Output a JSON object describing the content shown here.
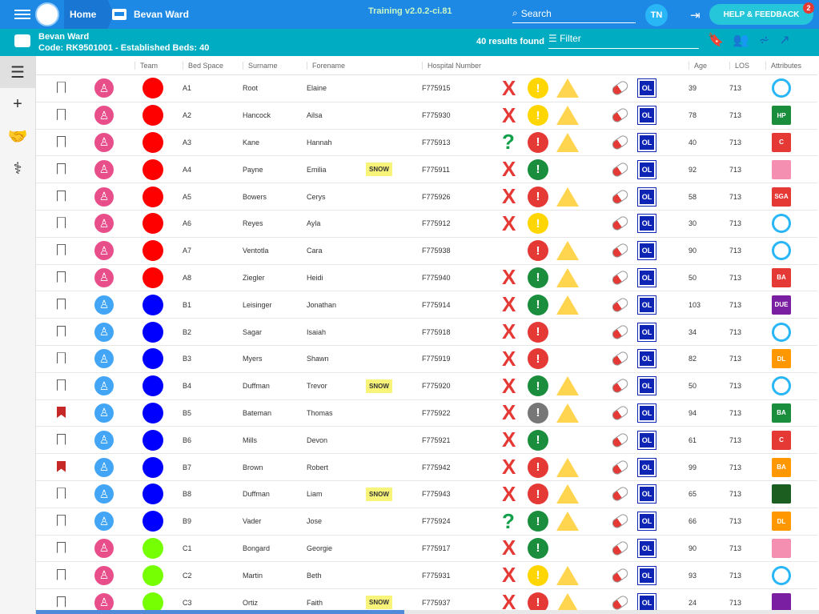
{
  "topbar": {
    "home": "Home",
    "ward": "Bevan Ward",
    "version": "Training v2.0.2-ci.81",
    "search_label": "Search",
    "user": "TN",
    "help": "HELP & FEEDBACK",
    "notifications": "2"
  },
  "subbar": {
    "ward_name": "Bevan Ward",
    "ward_code": "Code: RK9501001 - Established Beds: 40",
    "results": "40 results found",
    "filter": "Filter"
  },
  "columns": [
    "Team",
    "Bed Space",
    "Surname",
    "Forename",
    "Hospital Number",
    "Age",
    "LOS",
    "Attributes"
  ],
  "rows": [
    {
      "bed": "A1",
      "surname": "Root",
      "forename": "Elaine",
      "hosp": "F775915",
      "age": "39",
      "los": "713",
      "sex": "f",
      "team": "#ff0000",
      "snow": "",
      "bm": false,
      "mark": "#ffd600",
      "warn": true,
      "x": "X",
      "attr": "#29b6f6"
    },
    {
      "bed": "A2",
      "surname": "Hancock",
      "forename": "Ailsa",
      "hosp": "F775930",
      "age": "78",
      "los": "713",
      "sex": "f",
      "team": "#ff0000",
      "snow": "",
      "bm": false,
      "mark": "#ffd600",
      "warn": true,
      "x": "X",
      "attr": "#1b8e3d",
      "attr_text": "HP"
    },
    {
      "bed": "A3",
      "surname": "Kane",
      "forename": "Hannah",
      "hosp": "F775913",
      "age": "40",
      "los": "713",
      "sex": "f",
      "team": "#ff0000",
      "snow": "",
      "bm": false,
      "mark": "#e53935",
      "warn": true,
      "x": "?",
      "attr": "#e53935",
      "attr_text": "C"
    },
    {
      "bed": "A4",
      "surname": "Payne",
      "forename": "Emilia",
      "hosp": "F775911",
      "age": "92",
      "los": "713",
      "sex": "f",
      "team": "#ff0000",
      "snow": "SNOW",
      "bm": false,
      "mark": "#1b8e3d",
      "warn": false,
      "x": "X",
      "attr": "#f48fb1"
    },
    {
      "bed": "A5",
      "surname": "Bowers",
      "forename": "Cerys",
      "hosp": "F775926",
      "age": "58",
      "los": "713",
      "sex": "f",
      "team": "#ff0000",
      "snow": "",
      "bm": false,
      "mark": "#e53935",
      "warn": true,
      "x": "X",
      "attr": "#e53935",
      "attr_text": "SGA"
    },
    {
      "bed": "A6",
      "surname": "Reyes",
      "forename": "Ayla",
      "hosp": "F775912",
      "age": "30",
      "los": "713",
      "sex": "f",
      "team": "#ff0000",
      "snow": "",
      "bm": false,
      "mark": "#ffd600",
      "warn": false,
      "x": "X",
      "attr": "#29b6f6"
    },
    {
      "bed": "A7",
      "surname": "Ventotla",
      "forename": "Cara",
      "hosp": "F775938",
      "age": "90",
      "los": "713",
      "sex": "f",
      "team": "#ff0000",
      "snow": "",
      "bm": false,
      "mark": "#e53935",
      "warn": true,
      "x": "",
      "attr": "#29b6f6"
    },
    {
      "bed": "A8",
      "surname": "Ziegler",
      "forename": "Heidi",
      "hosp": "F775940",
      "age": "50",
      "los": "713",
      "sex": "f",
      "team": "#ff0000",
      "snow": "",
      "bm": false,
      "mark": "#1b8e3d",
      "warn": true,
      "x": "X",
      "attr": "#e53935",
      "attr_text": "BA"
    },
    {
      "bed": "B1",
      "surname": "Leisinger",
      "forename": "Jonathan",
      "hosp": "F775914",
      "age": "103",
      "los": "713",
      "sex": "m",
      "team": "#0000ff",
      "snow": "",
      "bm": false,
      "mark": "#1b8e3d",
      "warn": true,
      "x": "X",
      "attr": "#7b1fa2",
      "attr_text": "DUE"
    },
    {
      "bed": "B2",
      "surname": "Sagar",
      "forename": "Isaiah",
      "hosp": "F775918",
      "age": "34",
      "los": "713",
      "sex": "m",
      "team": "#0000ff",
      "snow": "",
      "bm": false,
      "mark": "#e53935",
      "warn": false,
      "x": "X",
      "attr": "#ffffff"
    },
    {
      "bed": "B3",
      "surname": "Myers",
      "forename": "Shawn",
      "hosp": "F775919",
      "age": "82",
      "los": "713",
      "sex": "m",
      "team": "#0000ff",
      "snow": "",
      "bm": false,
      "mark": "#e53935",
      "warn": false,
      "x": "X",
      "attr": "#ff9800",
      "attr_text": "DL"
    },
    {
      "bed": "B4",
      "surname": "Duffman",
      "forename": "Trevor",
      "hosp": "F775920",
      "age": "50",
      "los": "713",
      "sex": "m",
      "team": "#0000ff",
      "snow": "SNOW",
      "bm": false,
      "mark": "#1b8e3d",
      "warn": true,
      "x": "X",
      "attr": "#29b6f6"
    },
    {
      "bed": "B5",
      "surname": "Bateman",
      "forename": "Thomas",
      "hosp": "F775922",
      "age": "94",
      "los": "713",
      "sex": "m",
      "team": "#0000ff",
      "snow": "",
      "bm": true,
      "mark": "#777777",
      "warn": true,
      "x": "X",
      "attr": "#1b8e3d",
      "attr_text": "BA"
    },
    {
      "bed": "B6",
      "surname": "Mills",
      "forename": "Devon",
      "hosp": "F775921",
      "age": "61",
      "los": "713",
      "sex": "m",
      "team": "#0000ff",
      "snow": "",
      "bm": false,
      "mark": "#1b8e3d",
      "warn": false,
      "x": "X",
      "attr": "#e53935",
      "attr_text": "C"
    },
    {
      "bed": "B7",
      "surname": "Brown",
      "forename": "Robert",
      "hosp": "F775942",
      "age": "99",
      "los": "713",
      "sex": "m",
      "team": "#0000ff",
      "snow": "",
      "bm": true,
      "mark": "#e53935",
      "warn": true,
      "x": "X",
      "attr": "#ff9800",
      "attr_text": "BA"
    },
    {
      "bed": "B8",
      "surname": "Duffman",
      "forename": "Liam",
      "hosp": "F775943",
      "age": "65",
      "los": "713",
      "sex": "m",
      "team": "#0000ff",
      "snow": "SNOW",
      "bm": false,
      "mark": "#e53935",
      "warn": true,
      "x": "X",
      "attr": "#1b5e20"
    },
    {
      "bed": "B9",
      "surname": "Vader",
      "forename": "Jose",
      "hosp": "F775924",
      "age": "66",
      "los": "713",
      "sex": "m",
      "team": "#0000ff",
      "snow": "",
      "bm": false,
      "mark": "#1b8e3d",
      "warn": true,
      "x": "?",
      "attr": "#ff9800",
      "attr_text": "DL"
    },
    {
      "bed": "C1",
      "surname": "Bongard",
      "forename": "Georgie",
      "hosp": "F775917",
      "age": "90",
      "los": "713",
      "sex": "f",
      "team": "#76ff03",
      "snow": "",
      "bm": false,
      "mark": "#1b8e3d",
      "warn": false,
      "x": "X",
      "attr": "#f48fb1"
    },
    {
      "bed": "C2",
      "surname": "Martin",
      "forename": "Beth",
      "hosp": "F775931",
      "age": "93",
      "los": "713",
      "sex": "f",
      "team": "#76ff03",
      "snow": "",
      "bm": false,
      "mark": "#ffd600",
      "warn": true,
      "x": "X",
      "attr": "#29b6f6"
    },
    {
      "bed": "C3",
      "surname": "Ortiz",
      "forename": "Faith",
      "hosp": "F775937",
      "age": "24",
      "los": "713",
      "sex": "f",
      "team": "#76ff03",
      "snow": "SNOW",
      "bm": false,
      "mark": "#e53935",
      "warn": true,
      "x": "X",
      "attr": "#7b1fa2"
    }
  ]
}
